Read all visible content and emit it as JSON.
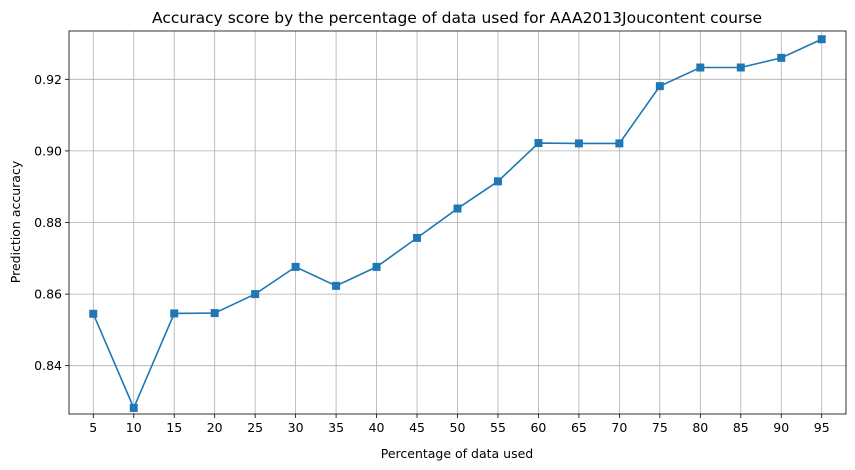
{
  "chart_data": {
    "type": "line",
    "title": "Accuracy score by the percentage of data used for AAA2013Joucontent course",
    "xlabel": "Percentage of data used",
    "ylabel": "Prediction accuracy",
    "x": [
      5,
      10,
      15,
      20,
      25,
      30,
      35,
      40,
      45,
      50,
      55,
      60,
      65,
      70,
      75,
      80,
      85,
      90,
      95
    ],
    "x_tick_labels": [
      "5",
      "10",
      "15",
      "20",
      "25",
      "30",
      "35",
      "40",
      "45",
      "50",
      "55",
      "60",
      "65",
      "70",
      "75",
      "80",
      "85",
      "90",
      "95"
    ],
    "series": [
      {
        "values": [
          0.8545,
          0.8282,
          0.8546,
          0.8547,
          0.86,
          0.8676,
          0.8623,
          0.8676,
          0.8757,
          0.8839,
          0.8915,
          0.9022,
          0.9021,
          0.9021,
          0.9181,
          0.9233,
          0.9233,
          0.926,
          0.9312
        ],
        "color": "#1f77b4",
        "marker": "square"
      }
    ],
    "xlim": [
      2,
      98
    ],
    "ylim": [
      0.8265,
      0.9335
    ],
    "y_ticks": [
      0.84,
      0.86,
      0.88,
      0.9,
      0.92
    ],
    "y_tick_labels": [
      "0.84",
      "0.86",
      "0.88",
      "0.90",
      "0.92"
    ],
    "grid": true
  }
}
